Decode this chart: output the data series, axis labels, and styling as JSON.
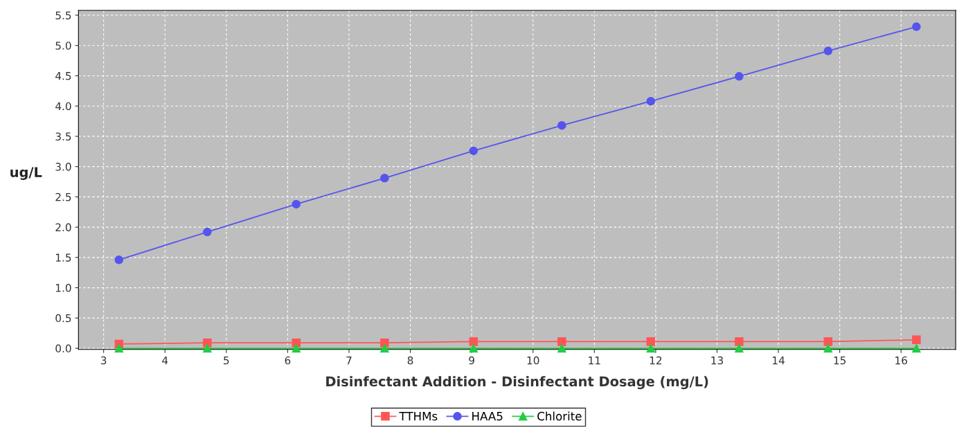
{
  "chart_data": {
    "type": "line",
    "xlabel": "Disinfectant Addition - Disinfectant Dosage (mg/L)",
    "ylabel": "ug/L",
    "x": [
      3.25,
      4.69,
      6.14,
      7.58,
      9.03,
      10.47,
      11.92,
      13.36,
      14.81,
      16.25
    ],
    "series": [
      {
        "name": "TTHMs",
        "color": "#ff5555",
        "marker": "square",
        "values": [
          0.07,
          0.09,
          0.09,
          0.09,
          0.11,
          0.11,
          0.11,
          0.11,
          0.11,
          0.14
        ]
      },
      {
        "name": "HAA5",
        "color": "#5555ee",
        "marker": "circle",
        "values": [
          1.46,
          1.92,
          2.38,
          2.81,
          3.26,
          3.68,
          4.08,
          4.49,
          4.91,
          5.31
        ]
      },
      {
        "name": "Chlorite",
        "color": "#22cc44",
        "marker": "triangle",
        "values": [
          0,
          0,
          0,
          0,
          0,
          0,
          0,
          0,
          0,
          0
        ]
      }
    ],
    "xlim": [
      2.59,
      16.89
    ],
    "xticks": [
      3,
      4,
      5,
      6,
      7,
      8,
      9,
      10,
      11,
      12,
      13,
      14,
      15,
      16
    ],
    "ylim": [
      -0.02,
      5.58
    ],
    "yticks": [
      {
        "value": 0,
        "label": "0.0"
      },
      0.5,
      {
        "value": 1,
        "label": "1.0"
      },
      1.5,
      {
        "value": 2,
        "label": "2.0"
      },
      2.5,
      {
        "value": 3,
        "label": "3.0"
      },
      3.5,
      {
        "value": 4,
        "label": "4.0"
      },
      4.5,
      {
        "value": 5,
        "label": "5.0"
      },
      5.5
    ],
    "grid": true,
    "legend": "bottom",
    "line_style": "solid"
  }
}
